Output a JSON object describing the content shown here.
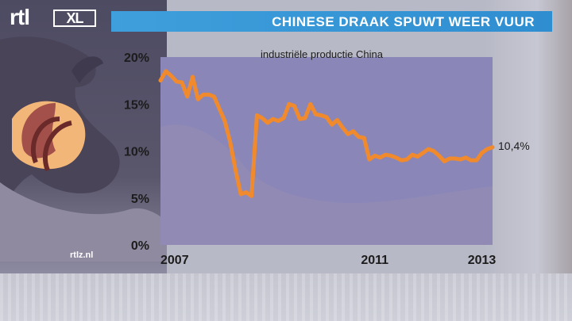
{
  "branding": {
    "logo_rtl": "rtl",
    "logo_xl": "XL",
    "watermark": "rtlz.nl"
  },
  "header": {
    "title": "CHINESE DRAAK SPUWT WEER VUUR"
  },
  "colors": {
    "title_bar": "#2f8ed0",
    "line": "#f08a2c",
    "plot_bg": "#8a87b8"
  },
  "chart_data": {
    "type": "line",
    "title": "industriële productie China",
    "xlabel": "",
    "ylabel": "",
    "xlim": [
      2007,
      2013.2
    ],
    "ylim": [
      0,
      20
    ],
    "x_ticks": [
      2007,
      2011,
      2013
    ],
    "x_tick_labels": [
      "2007",
      "2011",
      "2013"
    ],
    "y_ticks": [
      0,
      5,
      10,
      15,
      20
    ],
    "y_tick_labels": [
      "0%",
      "5%",
      "10%",
      "15%",
      "20%"
    ],
    "grid": false,
    "legend": "none",
    "end_label": "10,4%",
    "series": [
      {
        "x": [
          2007.0,
          2007.1,
          2007.2,
          2007.3,
          2007.4,
          2007.5,
          2007.6,
          2007.7,
          2007.8,
          2007.9,
          2008.0,
          2008.1,
          2008.2,
          2008.3,
          2008.4,
          2008.5,
          2008.6,
          2008.7,
          2008.8,
          2008.9,
          2009.0,
          2009.1,
          2009.2,
          2009.3,
          2009.4,
          2009.5,
          2009.6,
          2009.7,
          2009.8,
          2009.9,
          2010.0,
          2010.1,
          2010.2,
          2010.3,
          2010.4,
          2010.5,
          2010.6,
          2010.7,
          2010.8,
          2010.9,
          2011.0,
          2011.1,
          2011.2,
          2011.3,
          2011.4,
          2011.5,
          2011.6,
          2011.7,
          2011.8,
          2011.9,
          2012.0,
          2012.1,
          2012.2,
          2012.3,
          2012.4,
          2012.5,
          2012.6,
          2012.7,
          2012.8,
          2012.9,
          2013.0,
          2013.1,
          2013.2
        ],
        "y": [
          17.5,
          18.5,
          18.0,
          17.4,
          17.3,
          15.8,
          17.9,
          15.5,
          16.0,
          16.0,
          15.8,
          14.5,
          13.2,
          11.0,
          8.0,
          5.4,
          5.6,
          5.2,
          13.8,
          13.5,
          13.0,
          13.4,
          13.2,
          13.5,
          15.0,
          14.8,
          13.4,
          13.5,
          15.0,
          13.9,
          13.8,
          13.6,
          12.8,
          13.3,
          12.5,
          11.8,
          12.1,
          11.5,
          11.4,
          9.1,
          9.5,
          9.3,
          9.6,
          9.5,
          9.3,
          9.0,
          9.1,
          9.6,
          9.4,
          9.8,
          10.2,
          10.0,
          9.5,
          8.9,
          9.2,
          9.2,
          9.1,
          9.3,
          9.0,
          9.0,
          9.8,
          10.2,
          10.4
        ]
      }
    ]
  }
}
